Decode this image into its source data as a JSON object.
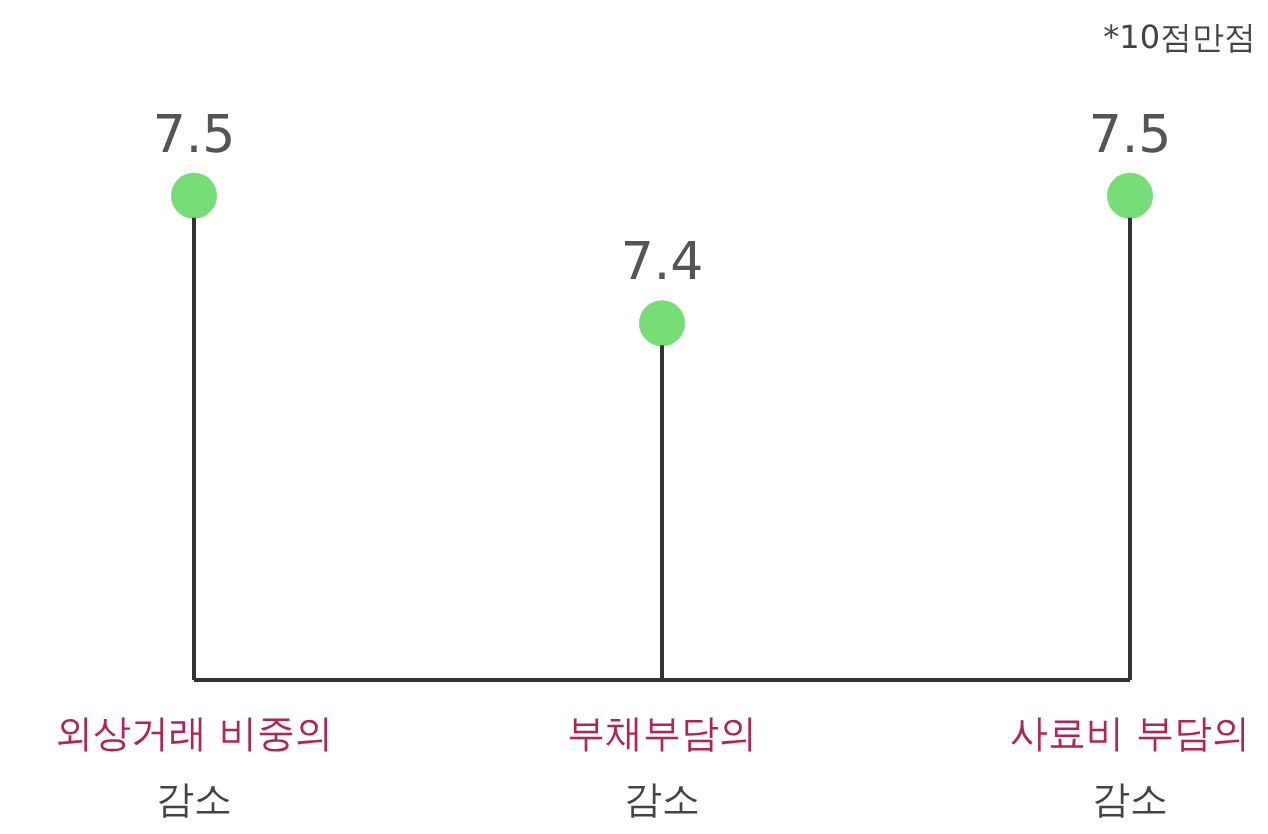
{
  "chart_data": {
    "type": "lollipop",
    "categories": [
      "외상거래 비중의\n감소",
      "부채부담의\n감소",
      "사료비 부담의\n감소"
    ],
    "values": [
      7.5,
      7.4,
      7.5
    ],
    "color": "#77dd77",
    "tick_labels": false,
    "data_labels": true,
    "annotations": [
      "*10점만점"
    ]
  }
}
